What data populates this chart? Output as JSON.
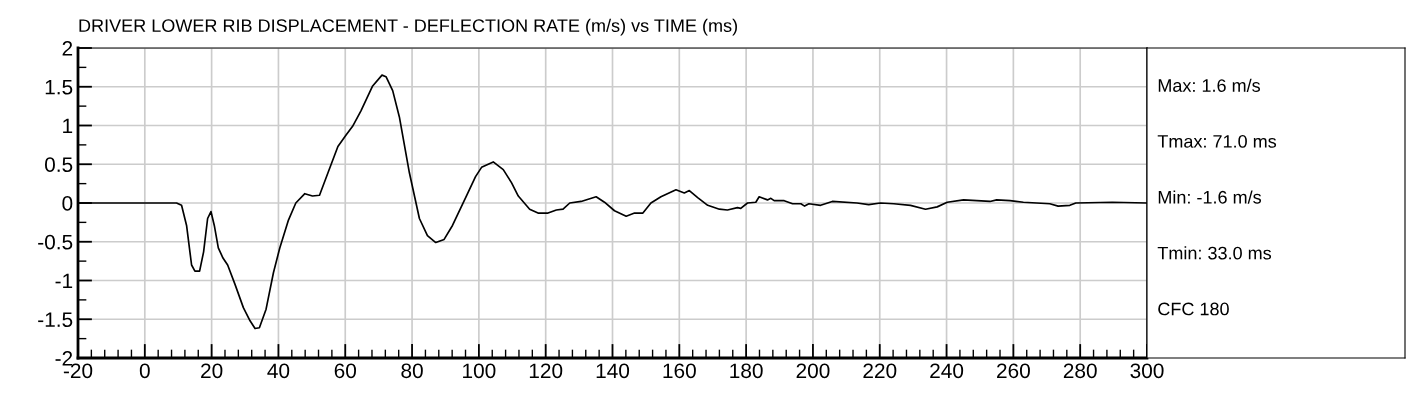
{
  "chart_data": {
    "type": "line",
    "title": "DRIVER LOWER RIB DISPLACEMENT - DEFLECTION RATE (m/s) vs TIME (ms)",
    "annotations": [
      "Max: 1.6 m/s",
      "Tmax: 71.0 ms",
      "Min: -1.6 m/s",
      "Tmin: 33.0 ms",
      "CFC 180"
    ],
    "series": [
      {
        "color": "#000000",
        "x": [
          -20,
          9.5,
          11,
          12.5,
          14,
          15,
          16.4,
          17.6,
          18.8,
          19.8,
          20.8,
          22,
          23.4,
          24.8,
          27,
          29.5,
          31.5,
          33,
          34.3,
          36.3,
          38.5,
          40.4,
          43,
          45.2,
          47.9,
          50.2,
          52.3,
          55,
          57.8,
          60.3,
          62.2,
          64.7,
          68.2,
          71,
          72.2,
          74.2,
          76.2,
          79.2,
          82.2,
          84.6,
          87.1,
          89.6,
          92.1,
          96.5,
          99,
          100.8,
          104.3,
          107.3,
          109.8,
          111.8,
          115.2,
          117.7,
          120.7,
          123.2,
          125.2,
          127.2,
          130.6,
          135.1,
          137.6,
          140.6,
          144.1,
          146.6,
          149.1,
          151.5,
          154.5,
          159,
          161.5,
          163,
          165.5,
          168.5,
          172,
          174.4,
          177.4,
          178.4,
          180.4,
          182.9,
          183.9,
          186.4,
          187.4,
          188.4,
          191.4,
          193.9,
          196.4,
          197.5,
          198.8,
          202.3,
          205.8,
          213.2,
          216.7,
          220.2,
          224.2,
          229.2,
          233.7,
          237.2,
          240.2,
          245.1,
          253,
          255,
          259,
          263,
          270.9,
          273.4,
          276.9,
          278.7,
          289.6,
          300
        ],
        "values": [
          0,
          0,
          -0.03,
          -0.29,
          -0.8,
          -0.88,
          -0.88,
          -0.63,
          -0.2,
          -0.11,
          -0.29,
          -0.58,
          -0.71,
          -0.8,
          -1.05,
          -1.35,
          -1.52,
          -1.62,
          -1.61,
          -1.37,
          -0.9,
          -0.58,
          -0.22,
          0,
          0.12,
          0.09,
          0.1,
          0.41,
          0.73,
          0.88,
          0.99,
          1.19,
          1.51,
          1.65,
          1.63,
          1.45,
          1.11,
          0.39,
          -0.2,
          -0.42,
          -0.51,
          -0.47,
          -0.29,
          0.11,
          0.34,
          0.46,
          0.53,
          0.43,
          0.26,
          0.09,
          -0.08,
          -0.13,
          -0.13,
          -0.09,
          -0.08,
          0,
          0.02,
          0.08,
          0.01,
          -0.1,
          -0.17,
          -0.13,
          -0.13,
          0,
          0.08,
          0.17,
          0.13,
          0.16,
          0.07,
          -0.03,
          -0.08,
          -0.09,
          -0.06,
          -0.07,
          0,
          0.01,
          0.08,
          0.04,
          0.06,
          0.03,
          0.03,
          -0.01,
          -0.01,
          -0.04,
          -0.01,
          -0.03,
          0.02,
          0,
          -0.02,
          0,
          -0.01,
          -0.03,
          -0.08,
          -0.05,
          0.01,
          0.04,
          0.02,
          0.04,
          0.03,
          0.01,
          -0.01,
          -0.04,
          -0.03,
          0,
          0.01,
          0
        ]
      }
    ],
    "xlim": [
      -20,
      300
    ],
    "xticks": [
      -20,
      {
        "value": -16,
        "label": null
      },
      {
        "value": -12,
        "label": null
      },
      {
        "value": -8,
        "label": null
      },
      {
        "value": -4,
        "label": null
      },
      0,
      {
        "value": 4,
        "label": null
      },
      {
        "value": 8,
        "label": null
      },
      {
        "value": 12,
        "label": null
      },
      {
        "value": 16,
        "label": null
      },
      20,
      {
        "value": 24,
        "label": null
      },
      {
        "value": 28,
        "label": null
      },
      {
        "value": 32,
        "label": null
      },
      {
        "value": 36,
        "label": null
      },
      40,
      {
        "value": 44,
        "label": null
      },
      {
        "value": 48,
        "label": null
      },
      {
        "value": 52,
        "label": null
      },
      {
        "value": 56,
        "label": null
      },
      60,
      {
        "value": 64,
        "label": null
      },
      {
        "value": 68,
        "label": null
      },
      {
        "value": 72,
        "label": null
      },
      {
        "value": 76,
        "label": null
      },
      80,
      {
        "value": 84,
        "label": null
      },
      {
        "value": 88,
        "label": null
      },
      {
        "value": 92,
        "label": null
      },
      {
        "value": 96,
        "label": null
      },
      100,
      {
        "value": 104,
        "label": null
      },
      {
        "value": 108,
        "label": null
      },
      {
        "value": 112,
        "label": null
      },
      {
        "value": 116,
        "label": null
      },
      120,
      {
        "value": 124,
        "label": null
      },
      {
        "value": 128,
        "label": null
      },
      {
        "value": 132,
        "label": null
      },
      {
        "value": 136,
        "label": null
      },
      140,
      {
        "value": 144,
        "label": null
      },
      {
        "value": 148,
        "label": null
      },
      {
        "value": 152,
        "label": null
      },
      {
        "value": 156,
        "label": null
      },
      160,
      {
        "value": 164,
        "label": null
      },
      {
        "value": 168,
        "label": null
      },
      {
        "value": 172,
        "label": null
      },
      {
        "value": 176,
        "label": null
      },
      180,
      {
        "value": 184,
        "label": null
      },
      {
        "value": 188,
        "label": null
      },
      {
        "value": 192,
        "label": null
      },
      {
        "value": 196,
        "label": null
      },
      200,
      {
        "value": 204,
        "label": null
      },
      {
        "value": 208,
        "label": null
      },
      {
        "value": 212,
        "label": null
      },
      {
        "value": 216,
        "label": null
      },
      220,
      {
        "value": 224,
        "label": null
      },
      {
        "value": 228,
        "label": null
      },
      {
        "value": 232,
        "label": null
      },
      {
        "value": 236,
        "label": null
      },
      240,
      {
        "value": 244,
        "label": null
      },
      {
        "value": 248,
        "label": null
      },
      {
        "value": 252,
        "label": null
      },
      {
        "value": 256,
        "label": null
      },
      260,
      {
        "value": 264,
        "label": null
      },
      {
        "value": 268,
        "label": null
      },
      {
        "value": 272,
        "label": null
      },
      {
        "value": 276,
        "label": null
      },
      280,
      {
        "value": 284,
        "label": null
      },
      {
        "value": 288,
        "label": null
      },
      {
        "value": 292,
        "label": null
      },
      {
        "value": 296,
        "label": null
      },
      300
    ],
    "ylim": [
      -2,
      2
    ],
    "yticks": [
      -2,
      {
        "value": -1.75,
        "label": null
      },
      -1.5,
      {
        "value": -1.25,
        "label": null
      },
      -1,
      {
        "value": -0.75,
        "label": null
      },
      -0.5,
      {
        "value": -0.25,
        "label": null
      },
      0,
      {
        "value": 0.25,
        "label": null
      },
      0.5,
      {
        "value": 0.75,
        "label": null
      },
      1,
      {
        "value": 1.25,
        "label": null
      },
      1.5,
      {
        "value": 1.75,
        "label": null
      },
      2
    ],
    "grid": true,
    "line_style": "solid",
    "marker": "none"
  }
}
